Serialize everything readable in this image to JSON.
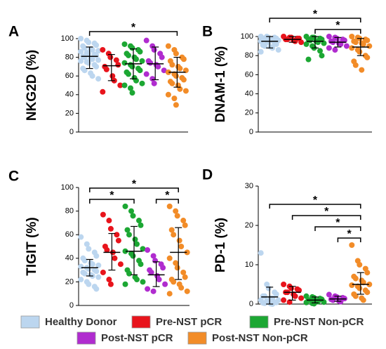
{
  "legend": [
    {
      "name": "Healthy Donor",
      "color": "#bcd6ef"
    },
    {
      "name": "Pre-NST pCR",
      "color": "#e8141c"
    },
    {
      "name": "Pre-NST Non-pCR",
      "color": "#1ca733"
    },
    {
      "name": "Post-NST pCR",
      "color": "#b02ccf"
    },
    {
      "name": "Post-NST Non-pCR",
      "color": "#f28c28"
    }
  ],
  "chart_data": [
    {
      "type": "dot",
      "panel": "A",
      "ylabel": "NKG2D (%)",
      "ylim": [
        0,
        100
      ],
      "yticks": [
        0,
        20,
        40,
        60,
        80,
        100
      ],
      "series": [
        {
          "values": [
            100,
            98,
            96,
            95,
            93,
            92,
            90,
            89,
            88,
            87,
            86,
            85,
            84,
            83,
            82,
            81,
            80,
            79,
            78,
            77,
            76,
            75,
            74,
            72,
            70,
            68,
            66,
            63,
            60,
            57
          ],
          "center": 81,
          "low": 68,
          "high": 91
        },
        {
          "values": [
            88,
            84,
            80,
            77,
            72,
            70,
            67,
            60,
            55,
            50,
            43
          ],
          "center": 71,
          "low": 55,
          "high": 83
        },
        {
          "values": [
            94,
            92,
            90,
            88,
            86,
            84,
            82,
            80,
            78,
            76,
            74,
            72,
            70,
            68,
            66,
            64,
            62,
            58,
            55,
            52,
            50,
            47,
            42
          ],
          "center": 73,
          "low": 57,
          "high": 89
        },
        {
          "values": [
            98,
            92,
            88,
            84,
            80,
            76,
            74,
            72,
            70,
            66,
            62,
            57,
            52
          ],
          "center": 73,
          "low": 56,
          "high": 91
        },
        {
          "values": [
            92,
            88,
            84,
            80,
            78,
            76,
            72,
            70,
            68,
            66,
            64,
            62,
            60,
            58,
            56,
            54,
            52,
            50,
            46,
            44,
            40,
            36,
            29
          ],
          "center": 64,
          "low": 48,
          "high": 80
        }
      ],
      "significance": [
        {
          "from": 0,
          "to": 4,
          "label": "*"
        }
      ]
    },
    {
      "type": "dot",
      "panel": "B",
      "ylabel": "DNAM-1 (%)",
      "ylim": [
        0,
        100
      ],
      "yticks": [
        0,
        20,
        40,
        60,
        80,
        100
      ],
      "series": [
        {
          "values": [
            100,
            100,
            99,
            99,
            98,
            98,
            97,
            97,
            96,
            96,
            95,
            95,
            94,
            93,
            92,
            91,
            90,
            89,
            88,
            86,
            84
          ],
          "center": 95,
          "low": 88,
          "high": 100
        },
        {
          "values": [
            100,
            99,
            99,
            98,
            98,
            97,
            97,
            96,
            95,
            94
          ],
          "center": 97,
          "low": 94,
          "high": 100
        },
        {
          "values": [
            100,
            99,
            99,
            98,
            97,
            97,
            96,
            95,
            94,
            93,
            92,
            90,
            88,
            85,
            80,
            76
          ],
          "center": 95,
          "low": 88,
          "high": 100
        },
        {
          "values": [
            100,
            99,
            98,
            97,
            96,
            95,
            94,
            93,
            92,
            90,
            88,
            86
          ],
          "center": 94,
          "low": 89,
          "high": 99
        },
        {
          "values": [
            100,
            99,
            98,
            97,
            96,
            95,
            94,
            93,
            92,
            90,
            88,
            86,
            84,
            80,
            78,
            74,
            70,
            65
          ],
          "center": 89,
          "low": 80,
          "high": 98
        }
      ],
      "significance": [
        {
          "from": 2,
          "to": 4,
          "label": "*"
        },
        {
          "from": 0,
          "to": 4,
          "label": "*"
        }
      ]
    },
    {
      "type": "dot",
      "panel": "C",
      "ylabel": "TIGIT  (%)",
      "ylim": [
        0,
        100
      ],
      "yticks": [
        0,
        20,
        40,
        60,
        80,
        100
      ],
      "series": [
        {
          "values": [
            58,
            52,
            48,
            45,
            42,
            40,
            38,
            36,
            35,
            34,
            33,
            32,
            31,
            30,
            29,
            28,
            27,
            26,
            25,
            24,
            22,
            20,
            18,
            16,
            14
          ],
          "center": 32,
          "low": 25,
          "high": 39
        },
        {
          "values": [
            77,
            72,
            65,
            60,
            55,
            50,
            47,
            45,
            40,
            35,
            28,
            22,
            18
          ],
          "center": 45,
          "low": 30,
          "high": 61
        },
        {
          "values": [
            84,
            80,
            76,
            72,
            68,
            64,
            60,
            56,
            52,
            48,
            46,
            44,
            42,
            38,
            35,
            30,
            27,
            24,
            22,
            20,
            18
          ],
          "center": 46,
          "low": 26,
          "high": 67
        },
        {
          "values": [
            47,
            42,
            38,
            35,
            32,
            30,
            28,
            25,
            22,
            18,
            14,
            12
          ],
          "center": 26,
          "low": 16,
          "high": 37
        },
        {
          "values": [
            84,
            80,
            76,
            72,
            68,
            64,
            60,
            55,
            50,
            45,
            40,
            36,
            32,
            28,
            24,
            22,
            20,
            18,
            15,
            12,
            10
          ],
          "center": 45,
          "low": 22,
          "high": 66
        }
      ],
      "significance": [
        {
          "from": 0,
          "to": 2,
          "label": "*"
        },
        {
          "from": 3,
          "to": 4,
          "label": "*"
        },
        {
          "from": 0,
          "to": 4,
          "label": "*"
        }
      ]
    },
    {
      "type": "dot",
      "panel": "D",
      "ylabel": "PD-1 (%)",
      "ylim": [
        0,
        30
      ],
      "yticks": [
        0,
        10,
        20,
        30
      ],
      "series": [
        {
          "values": [
            13,
            5,
            4,
            3,
            2.5,
            2,
            2,
            1.5,
            1.5,
            1,
            1,
            0.8,
            0.6,
            0.5,
            0.4,
            0.3,
            0.2,
            0.1,
            0
          ],
          "center": 1.8,
          "low": 0,
          "high": 4.3
        },
        {
          "values": [
            5,
            4.5,
            4,
            3.8,
            3.5,
            3,
            3,
            2.5,
            2,
            1.5,
            1,
            0.5
          ],
          "center": 3,
          "low": 1,
          "high": 4.5
        },
        {
          "values": [
            2,
            1.8,
            1.6,
            1.4,
            1.2,
            1,
            1,
            0.8,
            0.6,
            0.5,
            0.4,
            0.2,
            0.1
          ],
          "center": 1,
          "low": 0.3,
          "high": 1.8
        },
        {
          "values": [
            2.4,
            2,
            1.8,
            1.6,
            1.4,
            1.2,
            1,
            0.8,
            0.6
          ],
          "center": 1.3,
          "low": 0.7,
          "high": 2
        },
        {
          "values": [
            15,
            11,
            10,
            9,
            8,
            7,
            6.5,
            6,
            5.5,
            5,
            4.8,
            4.5,
            4,
            3.5,
            3,
            2.5,
            2,
            1.5,
            1
          ],
          "center": 5,
          "low": 2.5,
          "high": 8
        }
      ],
      "significance": [
        {
          "from": 3,
          "to": 4,
          "label": "*"
        },
        {
          "from": 2,
          "to": 4,
          "label": "*"
        },
        {
          "from": 1,
          "to": 4,
          "label": "*"
        },
        {
          "from": 0,
          "to": 4,
          "label": "*"
        }
      ]
    }
  ]
}
